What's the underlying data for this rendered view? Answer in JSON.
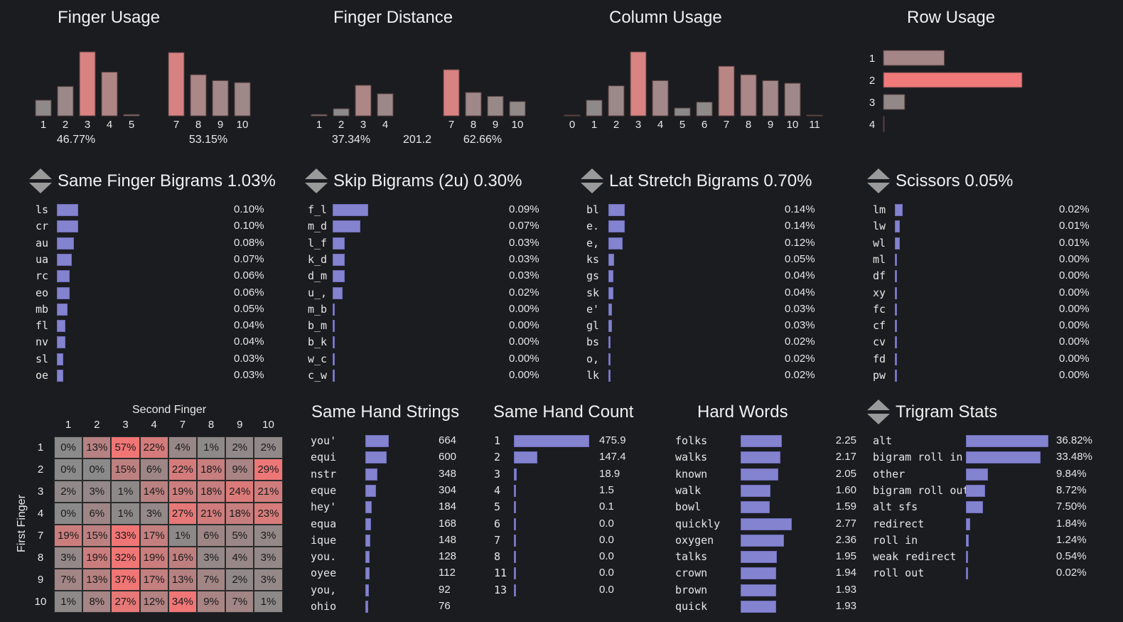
{
  "finger_usage": {
    "title": "Finger Usage",
    "fingers": [
      "1",
      "2",
      "3",
      "4",
      "5",
      "7",
      "8",
      "9",
      "10"
    ],
    "values": [
      2.4,
      4.5,
      9.8,
      6.7,
      0.2,
      9.7,
      6.3,
      5.4,
      5.1
    ],
    "left_total": "46.77%",
    "right_total": "53.15%"
  },
  "finger_distance": {
    "title": "Finger Distance",
    "fingers": [
      "1",
      "2",
      "3",
      "4",
      "7",
      "8",
      "9",
      "10"
    ],
    "values": [
      0.2,
      1.1,
      4.7,
      3.4,
      7.1,
      3.6,
      3.0,
      2.2
    ],
    "left_total": "37.34%",
    "center_value": "201.2",
    "right_total": "62.66%"
  },
  "column_usage": {
    "title": "Column Usage",
    "columns": [
      "0",
      "1",
      "2",
      "3",
      "4",
      "5",
      "6",
      "7",
      "8",
      "9",
      "10",
      "11"
    ],
    "values": [
      0.1,
      2.4,
      4.6,
      9.8,
      5.4,
      1.2,
      2.1,
      7.6,
      6.3,
      5.4,
      5.0,
      0.1
    ]
  },
  "row_usage": {
    "title": "Row Usage",
    "rows": [
      "1",
      "2",
      "3",
      "4"
    ],
    "values": [
      8.6,
      19.6,
      3.0,
      0.1
    ]
  },
  "sfb": {
    "title": "Same Finger Bigrams 1.03%",
    "items": [
      {
        "label": "ls",
        "value": 0.1,
        "pct": "0.10%"
      },
      {
        "label": "cr",
        "value": 0.1,
        "pct": "0.10%"
      },
      {
        "label": "au",
        "value": 0.08,
        "pct": "0.08%"
      },
      {
        "label": "ua",
        "value": 0.07,
        "pct": "0.07%"
      },
      {
        "label": "rc",
        "value": 0.06,
        "pct": "0.06%"
      },
      {
        "label": "eo",
        "value": 0.06,
        "pct": "0.06%"
      },
      {
        "label": "mb",
        "value": 0.05,
        "pct": "0.05%"
      },
      {
        "label": "fl",
        "value": 0.04,
        "pct": "0.04%"
      },
      {
        "label": "nv",
        "value": 0.04,
        "pct": "0.04%"
      },
      {
        "label": "sl",
        "value": 0.03,
        "pct": "0.03%"
      },
      {
        "label": "oe",
        "value": 0.03,
        "pct": "0.03%"
      }
    ]
  },
  "skip": {
    "title": "Skip Bigrams (2u) 0.30%",
    "items": [
      {
        "label": "f_l",
        "value": 0.09,
        "pct": "0.09%"
      },
      {
        "label": "m_d",
        "value": 0.07,
        "pct": "0.07%"
      },
      {
        "label": "l_f",
        "value": 0.03,
        "pct": "0.03%"
      },
      {
        "label": "k_d",
        "value": 0.03,
        "pct": "0.03%"
      },
      {
        "label": "d_m",
        "value": 0.03,
        "pct": "0.03%"
      },
      {
        "label": "u_,",
        "value": 0.025,
        "pct": "0.02%"
      },
      {
        "label": "m_b",
        "value": 0.004,
        "pct": "0.00%"
      },
      {
        "label": "b_m",
        "value": 0.004,
        "pct": "0.00%"
      },
      {
        "label": "b_k",
        "value": 0.004,
        "pct": "0.00%"
      },
      {
        "label": "w_c",
        "value": 0.004,
        "pct": "0.00%"
      },
      {
        "label": "c_w",
        "value": 0.004,
        "pct": "0.00%"
      }
    ]
  },
  "lat": {
    "title": "Lat Stretch Bigrams 0.70%",
    "items": [
      {
        "label": "bl",
        "value": 0.14,
        "pct": "0.14%"
      },
      {
        "label": "e.",
        "value": 0.14,
        "pct": "0.14%"
      },
      {
        "label": "e,",
        "value": 0.12,
        "pct": "0.12%"
      },
      {
        "label": "ks",
        "value": 0.05,
        "pct": "0.05%"
      },
      {
        "label": "gs",
        "value": 0.04,
        "pct": "0.04%"
      },
      {
        "label": "sk",
        "value": 0.04,
        "pct": "0.04%"
      },
      {
        "label": "e'",
        "value": 0.03,
        "pct": "0.03%"
      },
      {
        "label": "gl",
        "value": 0.03,
        "pct": "0.03%"
      },
      {
        "label": "bs",
        "value": 0.02,
        "pct": "0.02%"
      },
      {
        "label": "o,",
        "value": 0.02,
        "pct": "0.02%"
      },
      {
        "label": "lk",
        "value": 0.02,
        "pct": "0.02%"
      }
    ]
  },
  "scissors": {
    "title": "Scissors 0.05%",
    "items": [
      {
        "label": "lm",
        "value": 0.02,
        "pct": "0.02%"
      },
      {
        "label": "lw",
        "value": 0.012,
        "pct": "0.01%"
      },
      {
        "label": "wl",
        "value": 0.012,
        "pct": "0.01%"
      },
      {
        "label": "ml",
        "value": 0.004,
        "pct": "0.00%"
      },
      {
        "label": "df",
        "value": 0.004,
        "pct": "0.00%"
      },
      {
        "label": "xy",
        "value": 0.004,
        "pct": "0.00%"
      },
      {
        "label": "fc",
        "value": 0.004,
        "pct": "0.00%"
      },
      {
        "label": "cf",
        "value": 0.004,
        "pct": "0.00%"
      },
      {
        "label": "cv",
        "value": 0.004,
        "pct": "0.00%"
      },
      {
        "label": "fd",
        "value": 0.004,
        "pct": "0.00%"
      },
      {
        "label": "pw",
        "value": 0.004,
        "pct": "0.00%"
      }
    ]
  },
  "matrix": {
    "col_title": "Second Finger",
    "row_title": "First Finger",
    "cols": [
      "1",
      "2",
      "3",
      "4",
      "7",
      "8",
      "9",
      "10"
    ],
    "rows": [
      "1",
      "2",
      "3",
      "4",
      "7",
      "8",
      "9",
      "10"
    ],
    "values": [
      [
        0,
        13,
        57,
        22,
        4,
        1,
        2,
        2
      ],
      [
        0,
        0,
        15,
        6,
        22,
        18,
        9,
        29
      ],
      [
        2,
        3,
        1,
        14,
        19,
        18,
        24,
        21
      ],
      [
        0,
        6,
        1,
        3,
        27,
        21,
        18,
        23
      ],
      [
        19,
        15,
        33,
        17,
        1,
        6,
        5,
        3
      ],
      [
        3,
        19,
        32,
        19,
        16,
        3,
        4,
        3
      ],
      [
        7,
        13,
        37,
        17,
        13,
        7,
        2,
        3
      ],
      [
        1,
        8,
        27,
        12,
        34,
        9,
        7,
        1
      ]
    ]
  },
  "strings": {
    "title": "Same Hand Strings",
    "items": [
      {
        "label": "you'",
        "value": 664
      },
      {
        "label": "equi",
        "value": 600
      },
      {
        "label": "nstr",
        "value": 348
      },
      {
        "label": "eque",
        "value": 304
      },
      {
        "label": "hey'",
        "value": 184
      },
      {
        "label": "equa",
        "value": 168
      },
      {
        "label": "ique",
        "value": 148
      },
      {
        "label": "you.",
        "value": 128
      },
      {
        "label": "oyee",
        "value": 112
      },
      {
        "label": "you,",
        "value": 92
      },
      {
        "label": "ohio",
        "value": 76
      }
    ]
  },
  "count": {
    "title": "Same Hand Count",
    "items": [
      {
        "label": "1",
        "value": 475.9,
        "text": "475.9"
      },
      {
        "label": "2",
        "value": 147.4,
        "text": "147.4"
      },
      {
        "label": "3",
        "value": 18.9,
        "text": "18.9"
      },
      {
        "label": "4",
        "value": 1.5,
        "text": "1.5"
      },
      {
        "label": "5",
        "value": 0.1,
        "text": "0.1"
      },
      {
        "label": "6",
        "value": 0.0,
        "text": "0.0"
      },
      {
        "label": "7",
        "value": 0.0,
        "text": "0.0"
      },
      {
        "label": "8",
        "value": 0.0,
        "text": "0.0"
      },
      {
        "label": "11",
        "value": 0.0,
        "text": "0.0"
      },
      {
        "label": "13",
        "value": 0.0,
        "text": "0.0"
      }
    ]
  },
  "hard": {
    "title": "Hard Words",
    "items": [
      {
        "label": "folks",
        "value": 2.25,
        "text": "2.25"
      },
      {
        "label": "walks",
        "value": 2.17,
        "text": "2.17"
      },
      {
        "label": "known",
        "value": 2.05,
        "text": "2.05"
      },
      {
        "label": "walk",
        "value": 1.6,
        "text": "1.60"
      },
      {
        "label": "bowl",
        "value": 1.59,
        "text": "1.59"
      },
      {
        "label": "quickly",
        "value": 2.77,
        "text": "2.77"
      },
      {
        "label": "oxygen",
        "value": 2.36,
        "text": "2.36"
      },
      {
        "label": "talks",
        "value": 1.95,
        "text": "1.95"
      },
      {
        "label": "crown",
        "value": 1.94,
        "text": "1.94"
      },
      {
        "label": "brown",
        "value": 1.93,
        "text": "1.93"
      },
      {
        "label": "quick",
        "value": 1.93,
        "text": "1.93"
      }
    ]
  },
  "trigram": {
    "title": "Trigram Stats",
    "items": [
      {
        "label": "alt",
        "value": 36.82,
        "pct": "36.82%"
      },
      {
        "label": "bigram roll in",
        "value": 33.48,
        "pct": "33.48%"
      },
      {
        "label": "other",
        "value": 9.84,
        "pct": "9.84%"
      },
      {
        "label": "bigram roll out",
        "value": 8.72,
        "pct": "8.72%"
      },
      {
        "label": "alt sfs",
        "value": 7.5,
        "pct": "7.50%"
      },
      {
        "label": "redirect",
        "value": 1.84,
        "pct": "1.84%"
      },
      {
        "label": "roll in",
        "value": 1.24,
        "pct": "1.24%"
      },
      {
        "label": "weak redirect",
        "value": 0.54,
        "pct": "0.54%"
      },
      {
        "label": "roll out",
        "value": 0.02,
        "pct": "0.02%"
      }
    ]
  },
  "colors": {
    "bar_grey": "#a08a8a",
    "bar_red": "#f07a7a",
    "bar_blue": "#8383cf",
    "cell_grey": "#8a8a8a",
    "cell_red": "#ee7a7a",
    "background": "#1b1c20"
  },
  "icons": {
    "sort": "sort-arrows-icon"
  }
}
